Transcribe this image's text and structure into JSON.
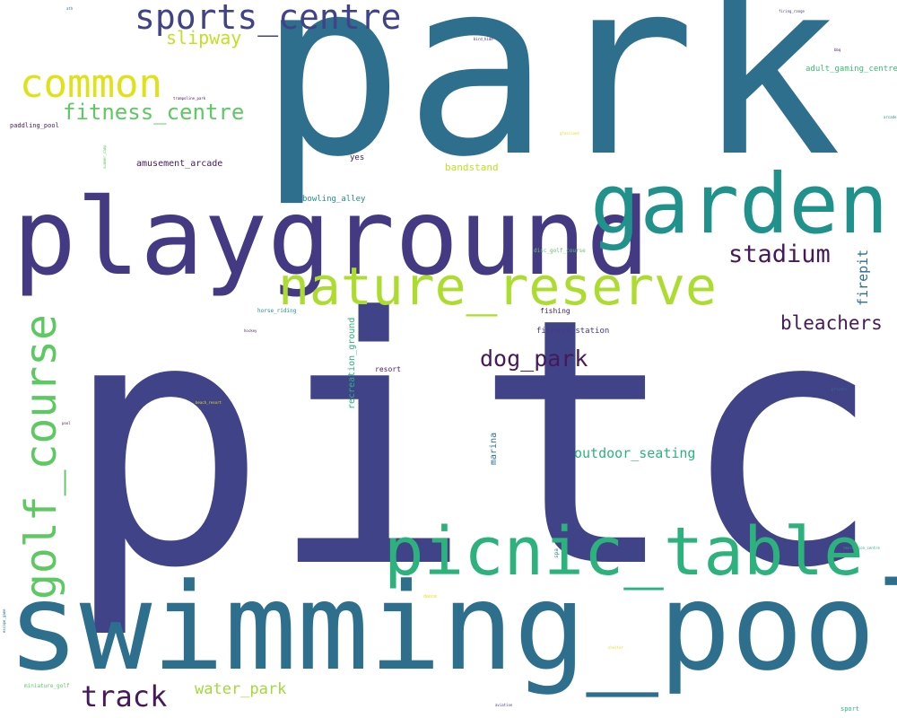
{
  "colors": {
    "background": "#ffffff",
    "dark_purple": "#46195a",
    "indigo": "#404387",
    "blue_teal": "#2e6f8e",
    "teal": "#21918c",
    "green": "#2db27d",
    "light_green": "#5ec962",
    "lime": "#addc30",
    "yellow": "#dde318"
  },
  "words": {
    "pitch": "pitch",
    "park": "park",
    "swimming_pool": "swimming_pool",
    "playground": "playground",
    "garden": "garden",
    "picnic_table": "picnic_table",
    "nature_reserve": "nature_reserve",
    "golf_course": "golf_course",
    "sports_centre": "sports_centre",
    "common": "common",
    "fitness_centre": "fitness_centre",
    "stadium": "stadium",
    "track": "track",
    "dog_park": "dog_park",
    "bleachers": "bleachers",
    "slipway": "slipway",
    "water_park": "water_park",
    "outdoor_seating": "outdoor_seating",
    "firepit": "firepit",
    "amusement_arcade": "amusement_arcade",
    "bandstand": "bandstand",
    "recreation_ground": "recreation_ground",
    "adult_gaming_centre": "adult_gaming_centre",
    "bowling_alley": "bowling_alley",
    "marina": "marina",
    "fitness_station": "fitness_station",
    "fishing": "fishing",
    "paddling_pool": "paddling_pool",
    "resort": "resort",
    "yes": "yes",
    "horse_riding": "horse_riding",
    "disc_golf_course": "disc_golf_course",
    "miniature_golf": "miniature_golf",
    "sport": "sport",
    "spa": "spa",
    "recreation_centre": "recreation_centre",
    "dance": "dance",
    "private": "private",
    "trampoline_park": "trampoline_park",
    "bird_hide": "bird_hide",
    "bbq": "bbq",
    "firing_range": "firing_range",
    "arcade": "arcade",
    "hockey": "hockey",
    "pool": "pool",
    "beach_resort": "beach_resort",
    "aviation": "aviation",
    "grassland": "grassland",
    "escape_game": "escape_game",
    "ath": "ath",
    "summer_camp": "summer_camp",
    "shelter": "shelter"
  }
}
